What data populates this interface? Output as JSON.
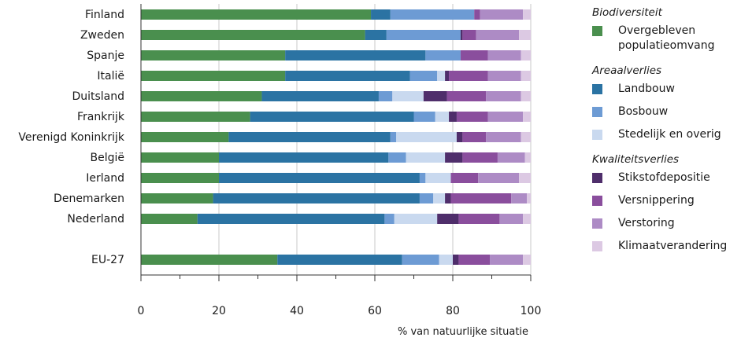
{
  "chart_data": {
    "type": "bar",
    "orientation": "horizontal",
    "stacked": true,
    "categories": [
      "Finland",
      "Zweden",
      "Spanje",
      "Italië",
      "Duitsland",
      "Frankrijk",
      "Verenigd Koninkrijk",
      "België",
      "Ierland",
      "Denemarken",
      "Nederland",
      "EU-27"
    ],
    "category_gap_before": "EU-27",
    "series": [
      {
        "name": "Overgebleven populatieomvang",
        "color": "#4a8f4e",
        "values": [
          59,
          57.5,
          37,
          37,
          31,
          28,
          22.5,
          20,
          20,
          18.5,
          14.5,
          35
        ]
      },
      {
        "name": "Landbouw",
        "color": "#2b73a3",
        "values": [
          5,
          5.5,
          36,
          32,
          30,
          42,
          41.5,
          43.5,
          51.5,
          53,
          48,
          32
        ]
      },
      {
        "name": "Bosbouw",
        "color": "#6d9bd4",
        "values": [
          21.5,
          19,
          9,
          7,
          3.5,
          5.5,
          1.5,
          4.5,
          1.5,
          3.5,
          2.5,
          9.5
        ]
      },
      {
        "name": "Stedelijk en overig",
        "color": "#c9d9ef",
        "values": [
          0,
          0,
          0,
          2,
          8,
          3.5,
          15.5,
          10,
          6.5,
          3,
          11,
          3.5
        ]
      },
      {
        "name": "Stikstofdepositie",
        "color": "#4f2e6b",
        "values": [
          0,
          0.5,
          0,
          1,
          6,
          2,
          1.5,
          4.5,
          0,
          1.5,
          5.5,
          1.5
        ]
      },
      {
        "name": "Versnippering",
        "color": "#8a4e9d",
        "values": [
          1.5,
          3.5,
          7,
          10,
          10,
          8,
          6,
          9,
          7,
          15.5,
          10.5,
          8
        ]
      },
      {
        "name": "Verstoring",
        "color": "#ad8bc5",
        "values": [
          11,
          11,
          8.5,
          8.5,
          9,
          9,
          9,
          7,
          10.5,
          4,
          6,
          8.5
        ]
      },
      {
        "name": "Klimaatverandering",
        "color": "#dcc9e3",
        "values": [
          2,
          3,
          2.5,
          2.5,
          2.5,
          2,
          2.5,
          1.5,
          3,
          1,
          2,
          2
        ]
      }
    ],
    "xlim": [
      0,
      100
    ],
    "xticks": [
      0,
      20,
      40,
      60,
      80,
      100
    ],
    "minor_tick_step": 10,
    "xlabel": "% van natuurlijke situatie",
    "grid": "vertical",
    "legend_position": "right"
  },
  "legend": {
    "groups": [
      {
        "heading": "Biodiversiteit",
        "items": [
          {
            "label": "Overgebleven populatieomvang",
            "color": "#4a8f4e"
          }
        ]
      },
      {
        "heading": "Areaalverlies",
        "items": [
          {
            "label": "Landbouw",
            "color": "#2b73a3"
          },
          {
            "label": "Bosbouw",
            "color": "#6d9bd4"
          },
          {
            "label": "Stedelijk en overig",
            "color": "#c9d9ef"
          }
        ]
      },
      {
        "heading": "Kwaliteitsverlies",
        "items": [
          {
            "label": "Stikstofdepositie",
            "color": "#4f2e6b"
          },
          {
            "label": "Versnippering",
            "color": "#8a4e9d"
          },
          {
            "label": "Verstoring",
            "color": "#ad8bc5"
          },
          {
            "label": "Klimaatverandering",
            "color": "#dcc9e3"
          }
        ]
      }
    ]
  }
}
